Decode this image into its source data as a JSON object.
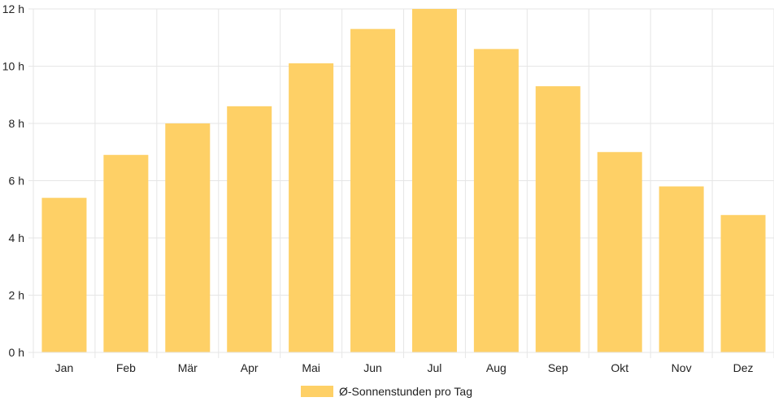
{
  "chart_data": {
    "type": "bar",
    "categories": [
      "Jan",
      "Feb",
      "Mär",
      "Apr",
      "Mai",
      "Jun",
      "Jul",
      "Aug",
      "Sep",
      "Okt",
      "Nov",
      "Dez"
    ],
    "series": [
      {
        "name": "Ø-Sonnenstunden pro Tag",
        "values": [
          5.4,
          6.9,
          8.0,
          8.6,
          10.1,
          11.3,
          12.0,
          10.6,
          9.3,
          7.0,
          5.8,
          4.8
        ],
        "color": "#fed066"
      }
    ],
    "y_ticks": [
      "0 h",
      "2 h",
      "4 h",
      "6 h",
      "8 h",
      "10 h",
      "12 h"
    ],
    "ylim": [
      0,
      12
    ],
    "grid": true,
    "legend_position": "bottom",
    "grid_color": "#e6e6e6"
  }
}
